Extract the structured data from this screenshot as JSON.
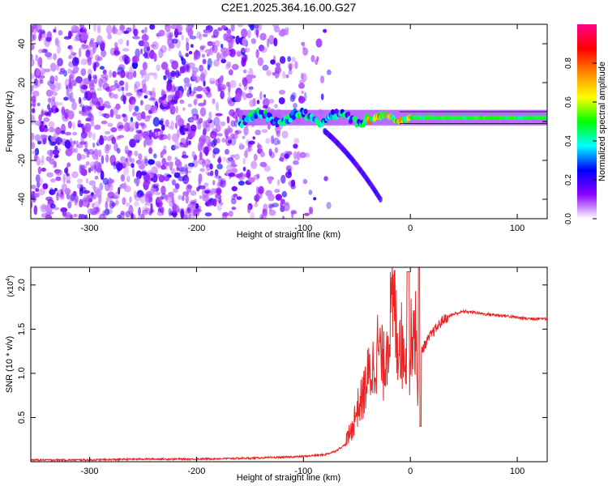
{
  "title": "C2E1.2025.364.16.00.G27",
  "chart_data": [
    {
      "type": "heatmap",
      "xlabel": "Height of straight line (km)",
      "ylabel": "Frequency (Hz)",
      "xlim": [
        -355,
        128
      ],
      "ylim": [
        -50,
        50
      ],
      "xticks": [
        -300,
        -200,
        -100,
        0,
        100
      ],
      "yticks": [
        -40,
        -20,
        0,
        20,
        40
      ],
      "xtick_labels": [
        "-300",
        "-200",
        "-100",
        "0",
        "100"
      ],
      "ytick_labels": [
        "-40",
        "-20",
        "0",
        "20",
        "40"
      ],
      "colorbar": {
        "label": "Normalized spectral amplitude",
        "range": [
          0,
          1
        ],
        "ticks": [
          0.0,
          0.2,
          0.4,
          0.6,
          0.8
        ],
        "tick_labels": [
          "0.0",
          "0.2",
          "0.4",
          "0.6",
          "0.8"
        ],
        "colors": [
          "#ffffff",
          "#8800ff",
          "#0000ff",
          "#00ffff",
          "#00ff00",
          "#ffff00",
          "#ff8800",
          "#ff0000",
          "#ff0088"
        ]
      },
      "features": [
        {
          "name": "broadband-noise",
          "x_range": [
            -355,
            -100
          ],
          "f_range": [
            -50,
            50
          ],
          "amplitude": 0.15
        },
        {
          "name": "carrier-line",
          "x_range": [
            -160,
            128
          ],
          "f_center": 2,
          "amplitude": 0.5
        },
        {
          "name": "descending-branch",
          "x_start": -80,
          "f_start": -5,
          "x_end": -28,
          "f_end": -40,
          "amplitude": 0.2
        }
      ]
    },
    {
      "type": "line",
      "xlabel": "Height of straight line (km)",
      "ylabel": "SNR (10 * v/v)",
      "multiplier": "(x10",
      "multiplier_exp": "4",
      "multiplier_close": ")",
      "xlim": [
        -355,
        128
      ],
      "ylim": [
        0,
        2.2
      ],
      "xticks": [
        -300,
        -200,
        -100,
        0,
        100
      ],
      "yticks": [
        0.5,
        1.0,
        1.5,
        2.0
      ],
      "xtick_labels": [
        "-300",
        "-200",
        "-100",
        "0",
        "100"
      ],
      "ytick_labels": [
        "0.5",
        "1.0",
        "1.5",
        "2.0"
      ],
      "line_color": "#ee2222",
      "series": [
        {
          "x": [
            -355,
            -300,
            -250,
            -200,
            -150,
            -120,
            -100,
            -80,
            -70,
            -60,
            -55,
            -50,
            -45,
            -40,
            -35,
            -30,
            -25,
            -20,
            -15,
            -12,
            -10,
            -7,
            -5,
            -2,
            0,
            2,
            5,
            8,
            10,
            15,
            20,
            25,
            30,
            40,
            50,
            60,
            70,
            80,
            90,
            100,
            110,
            128
          ],
          "y": [
            0.02,
            0.02,
            0.03,
            0.03,
            0.04,
            0.05,
            0.06,
            0.08,
            0.12,
            0.2,
            0.3,
            0.5,
            0.6,
            0.8,
            0.9,
            1.1,
            0.9,
            1.3,
            1.5,
            1.1,
            1.3,
            1.0,
            1.2,
            0.6,
            1.0,
            1.4,
            1.2,
            0.45,
            1.25,
            1.35,
            1.45,
            1.52,
            1.6,
            1.67,
            1.7,
            1.69,
            1.67,
            1.66,
            1.65,
            1.63,
            1.62,
            1.62
          ]
        }
      ]
    }
  ]
}
